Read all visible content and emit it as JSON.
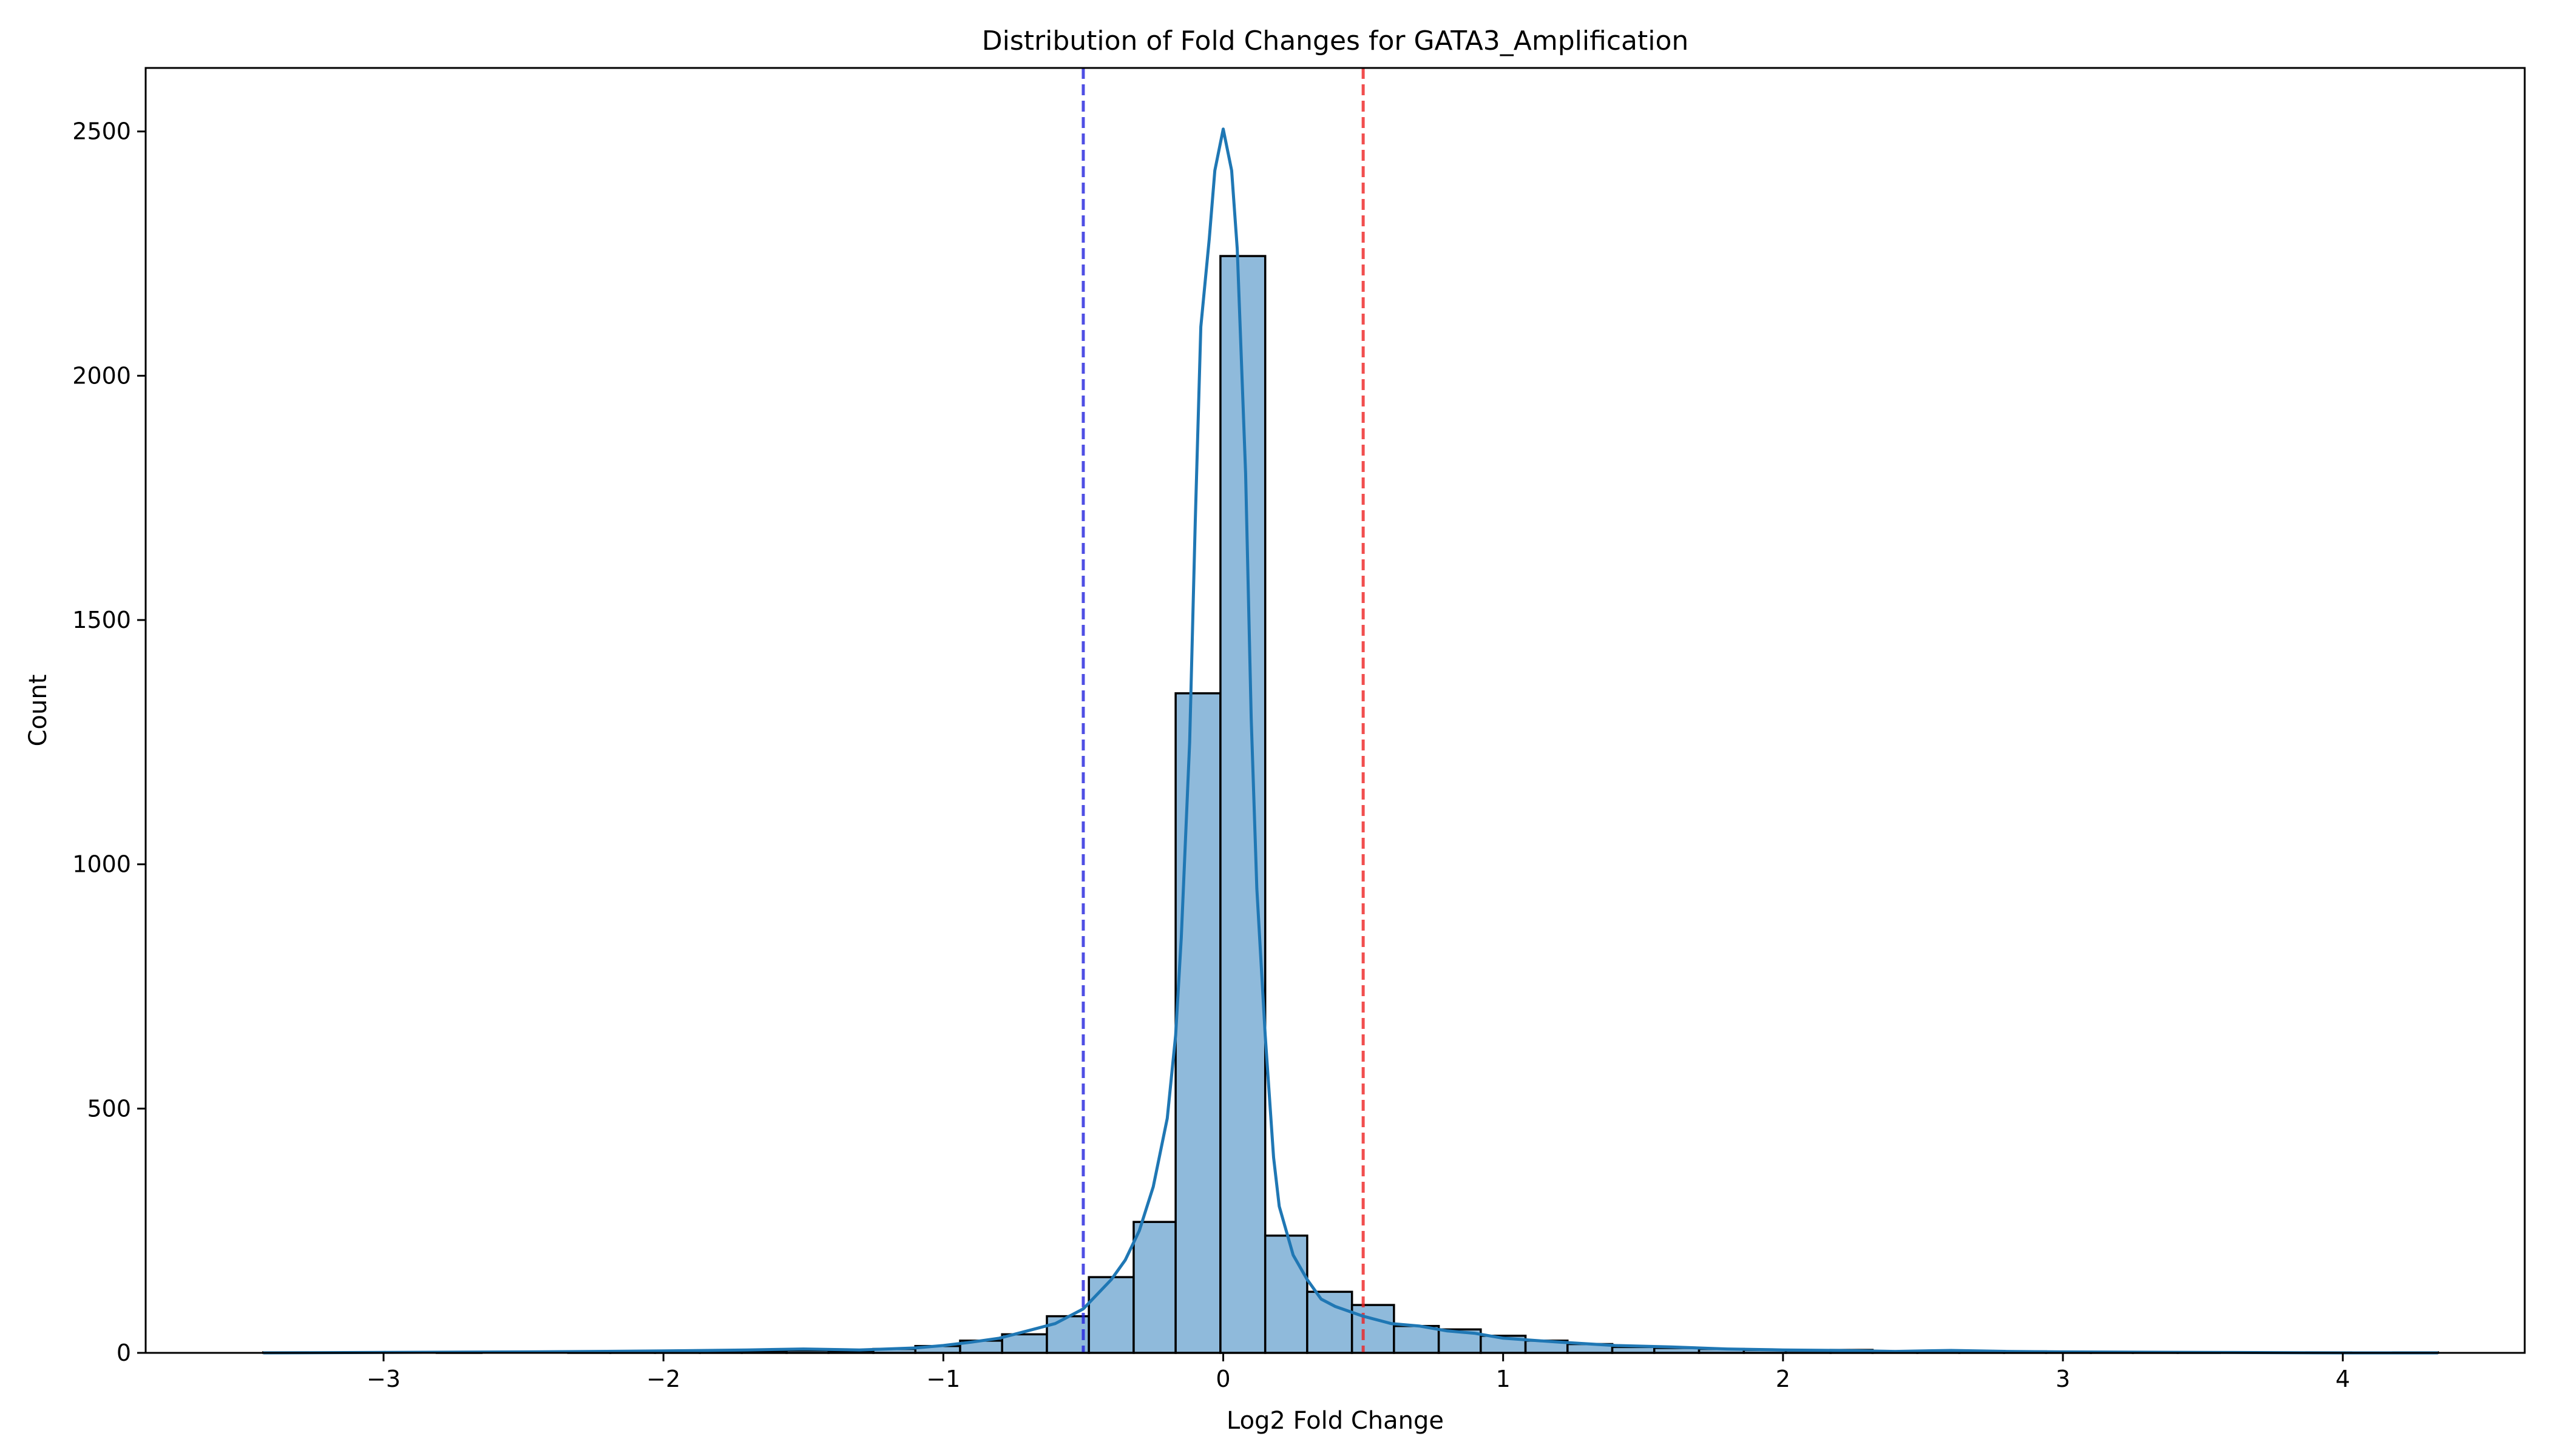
{
  "chart_data": {
    "type": "bar",
    "title": "Distribution of Fold Changes for GATA3_Amplification",
    "xlabel": "Log2 Fold Change",
    "ylabel": "Count",
    "xlim": [
      -3.85,
      4.65
    ],
    "ylim": [
      0,
      2630
    ],
    "x_ticks": [
      -3,
      -2,
      -1,
      0,
      1,
      2,
      3,
      4
    ],
    "x_tick_labels": [
      "−3",
      "−2",
      "−1",
      "0",
      "1",
      "2",
      "3",
      "4"
    ],
    "y_ticks": [
      0,
      500,
      1000,
      1500,
      2000,
      2500
    ],
    "y_tick_labels": [
      "0",
      "500",
      "1000",
      "1500",
      "2000",
      "2500"
    ],
    "grid": false,
    "bin_edges": [
      -3.43,
      -3.27,
      -3.12,
      -2.96,
      -2.81,
      -2.65,
      -2.5,
      -2.34,
      -2.19,
      -2.03,
      -1.87,
      -1.72,
      -1.56,
      -1.41,
      -1.25,
      -1.1,
      -0.94,
      -0.79,
      -0.63,
      -0.48,
      -0.32,
      -0.17,
      -0.01,
      0.15,
      0.3,
      0.46,
      0.61,
      0.77,
      0.92,
      1.08,
      1.23,
      1.39,
      1.54,
      1.7,
      1.86,
      2.01,
      2.17,
      2.32,
      2.48,
      2.63,
      2.79,
      2.94,
      3.1,
      3.25,
      3.41,
      3.56,
      3.72,
      3.87,
      4.03,
      4.18,
      4.34
    ],
    "counts": [
      1,
      0,
      0,
      0,
      1,
      0,
      0,
      1,
      1,
      2,
      2,
      4,
      5,
      4,
      8,
      14,
      25,
      38,
      75,
      155,
      268,
      1350,
      2245,
      240,
      125,
      98,
      55,
      48,
      35,
      25,
      18,
      12,
      10,
      8,
      6,
      5,
      6,
      3,
      3,
      4,
      3,
      2,
      1,
      1,
      1,
      0,
      0,
      1,
      0,
      1
    ],
    "kde": {
      "x": [
        -3.43,
        -3.0,
        -2.5,
        -2.0,
        -1.7,
        -1.5,
        -1.3,
        -1.1,
        -1.0,
        -0.9,
        -0.8,
        -0.7,
        -0.6,
        -0.5,
        -0.4,
        -0.35,
        -0.3,
        -0.25,
        -0.2,
        -0.17,
        -0.15,
        -0.12,
        -0.1,
        -0.08,
        -0.05,
        -0.03,
        0.0,
        0.03,
        0.05,
        0.08,
        0.1,
        0.12,
        0.15,
        0.18,
        0.2,
        0.25,
        0.3,
        0.35,
        0.4,
        0.5,
        0.6,
        0.7,
        0.8,
        0.9,
        1.0,
        1.2,
        1.4,
        1.6,
        1.8,
        2.0,
        2.2,
        2.4,
        2.6,
        2.8,
        3.0,
        3.5,
        4.0,
        4.34
      ],
      "y": [
        0,
        1,
        2,
        4,
        6,
        8,
        6,
        10,
        15,
        22,
        30,
        45,
        60,
        90,
        150,
        190,
        250,
        340,
        480,
        650,
        850,
        1250,
        1700,
        2100,
        2280,
        2420,
        2505,
        2420,
        2260,
        1800,
        1300,
        950,
        650,
        400,
        300,
        200,
        150,
        110,
        95,
        75,
        60,
        55,
        45,
        40,
        30,
        22,
        15,
        12,
        8,
        6,
        5,
        3,
        5,
        3,
        2,
        1,
        0,
        0
      ]
    },
    "vlines": [
      {
        "x": -0.5,
        "color": "#2222dd",
        "style": "dashed"
      },
      {
        "x": 0.5,
        "color": "#ee2222",
        "style": "dashed"
      }
    ],
    "colors": {
      "bar_fill": "#8fbadb",
      "bar_edge": "#000000",
      "kde_line": "#1f77b4"
    }
  }
}
